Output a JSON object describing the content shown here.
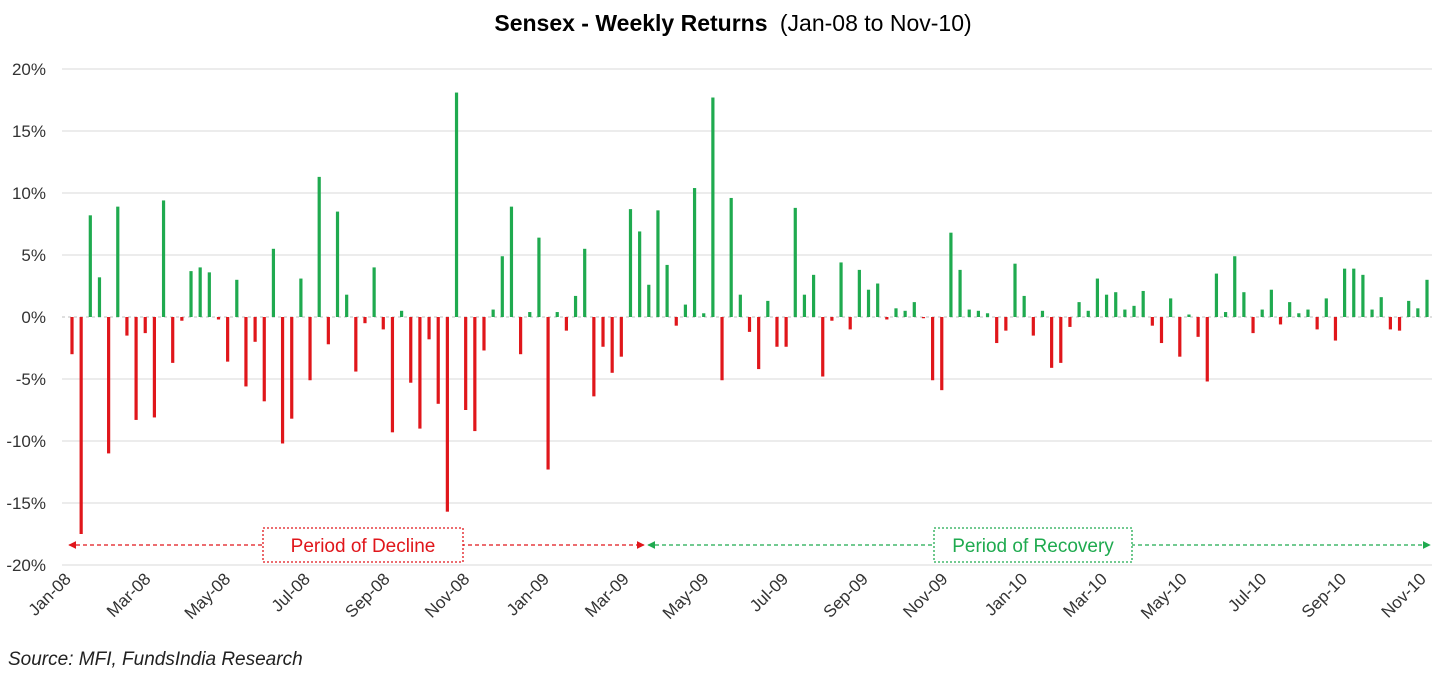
{
  "chart_data": {
    "type": "bar",
    "title_bold": "Sensex - Weekly Returns",
    "title_rest": "(Jan-08 to Nov-10)",
    "ylim": [
      -20,
      20
    ],
    "y_ticks": [
      {
        "value": 20,
        "label": "20%"
      },
      {
        "value": 15,
        "label": "15%"
      },
      {
        "value": 10,
        "label": "10%"
      },
      {
        "value": 5,
        "label": "5%"
      },
      {
        "value": 0,
        "label": "0%"
      },
      {
        "value": -5,
        "label": "-5%"
      },
      {
        "value": -10,
        "label": "-10%"
      },
      {
        "value": -15,
        "label": "-15%"
      },
      {
        "value": -20,
        "label": "-20%"
      }
    ],
    "x_tick_labels": [
      "Jan-08",
      "Mar-08",
      "May-08",
      "Jul-08",
      "Sep-08",
      "Nov-08",
      "Jan-09",
      "Mar-09",
      "May-09",
      "Jul-09",
      "Sep-09",
      "Nov-09",
      "Jan-10",
      "Mar-10",
      "May-10",
      "Jul-10",
      "Sep-10",
      "Nov-10"
    ],
    "grid": true,
    "positive_color": "#1faa4f",
    "negative_color": "#e0161b",
    "values": [
      -3.0,
      -17.5,
      8.2,
      3.2,
      -11.0,
      8.9,
      -1.5,
      -8.3,
      -1.3,
      -8.1,
      9.4,
      -3.7,
      -0.3,
      3.7,
      4.0,
      3.6,
      -0.2,
      -3.6,
      3.0,
      -5.6,
      -2.0,
      -6.8,
      5.5,
      -10.2,
      -8.2,
      3.1,
      -5.1,
      11.3,
      -2.2,
      8.5,
      1.8,
      -4.4,
      -0.5,
      4.0,
      -1.0,
      -9.3,
      0.5,
      -5.3,
      -9.0,
      -1.8,
      -7.0,
      -15.7,
      18.1,
      -7.5,
      -9.2,
      -2.7,
      0.6,
      4.9,
      8.9,
      -3.0,
      0.4,
      6.4,
      -12.3,
      0.4,
      -1.1,
      1.7,
      5.5,
      -6.4,
      -2.4,
      -4.5,
      -3.2,
      8.7,
      6.9,
      2.6,
      8.6,
      4.2,
      -0.7,
      1.0,
      10.4,
      0.3,
      17.7,
      -5.1,
      9.6,
      1.8,
      -1.2,
      -4.2,
      1.3,
      -2.4,
      -2.4,
      8.8,
      1.8,
      3.4,
      -4.8,
      -0.3,
      4.4,
      -1.0,
      3.8,
      2.2,
      2.7,
      -0.2,
      0.7,
      0.5,
      1.2,
      -0.1,
      -5.1,
      -5.9,
      6.8,
      3.8,
      0.6,
      0.5,
      0.3,
      -2.1,
      -1.1,
      4.3,
      1.7,
      -1.5,
      0.5,
      -4.1,
      -3.7,
      -0.8,
      1.2,
      0.5,
      3.1,
      1.8,
      2.0,
      0.6,
      0.9,
      2.1,
      -0.7,
      -2.1,
      1.5,
      -3.2,
      0.2,
      -1.6,
      -5.2,
      3.5,
      0.4,
      4.9,
      2.0,
      -1.3,
      0.6,
      2.2,
      -0.6,
      1.2,
      0.3,
      0.6,
      -1.0,
      1.5,
      -1.9,
      3.9,
      3.9,
      3.4,
      0.6,
      1.6,
      -1.0,
      -1.1,
      1.3,
      0.7,
      3.0
    ],
    "annotations": [
      {
        "label": "Period of Decline",
        "color": "#e0161b"
      },
      {
        "label": "Period of Recovery",
        "color": "#1faa4f"
      }
    ]
  },
  "source": "Source: MFI, FundsIndia Research"
}
